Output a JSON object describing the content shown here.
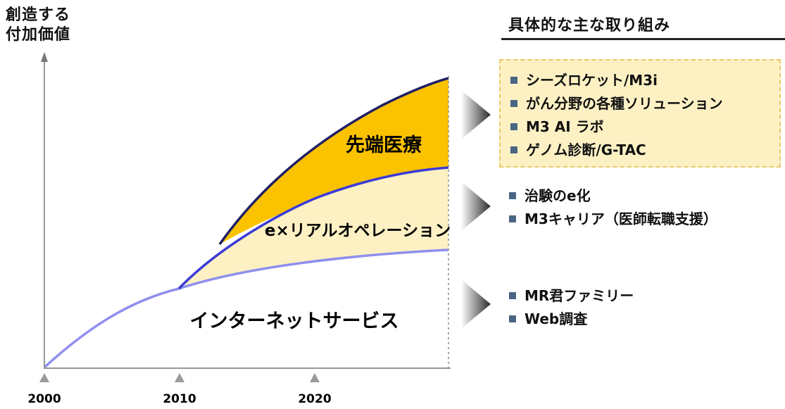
{
  "axis": {
    "y_title_line1": "創造する",
    "y_title_line2": "付加価値",
    "x_ticks": [
      "2000",
      "2010",
      "2020"
    ]
  },
  "layers": {
    "internet": "インターネットサービス",
    "operation": "e×リアルオペレーション",
    "advanced": "先端医療"
  },
  "panel": {
    "title": "具体的な主な取り組み",
    "groups": [
      {
        "items": [
          "シーズロケット/M3i",
          "がん分野の各種ソリューション",
          "M3 AI ラボ",
          "ゲノム診断/G-TAC"
        ]
      },
      {
        "items": [
          "治験のe化",
          "M3キャリア（医師転職支援）"
        ]
      },
      {
        "items": [
          "MR君ファミリー",
          "Web調査"
        ]
      }
    ]
  },
  "colors": {
    "advanced_fill": "#fbc200",
    "operation_fill": "#fdf1c4",
    "advanced_edge": "#1f1f66",
    "operation_edge": "#3b3bd6",
    "internet_edge": "#8f8fee",
    "bullet": "#4a6584"
  }
}
